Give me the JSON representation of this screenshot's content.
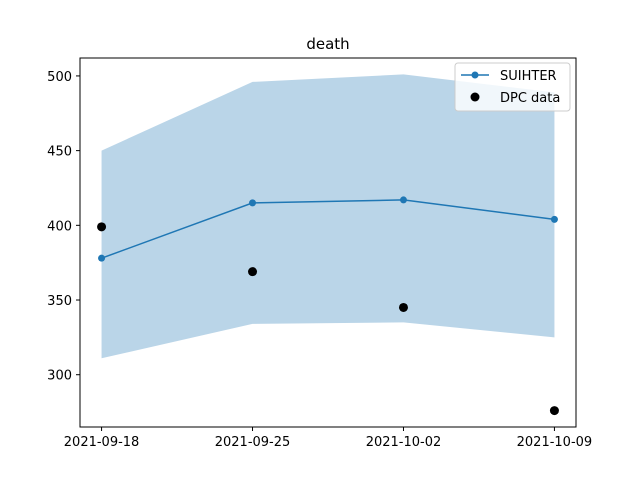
{
  "chart_data": {
    "type": "line",
    "title": "death",
    "xlabel": "",
    "ylabel": "",
    "x": [
      "2021-09-18",
      "2021-09-25",
      "2021-10-02",
      "2021-10-09"
    ],
    "xlim": [
      "2021-09-17",
      "2021-10-10"
    ],
    "ylim": [
      265,
      512
    ],
    "yticks": [
      300,
      350,
      400,
      450,
      500
    ],
    "grid": false,
    "legend_position": "top-right",
    "series": [
      {
        "name": "SUIHTER",
        "kind": "line",
        "color": "#1f77b4",
        "values": [
          378,
          415,
          417,
          404
        ],
        "band_lower": [
          311,
          334,
          335,
          325
        ],
        "band_upper": [
          450,
          496,
          501,
          489
        ],
        "band_color": "#bad5e8"
      },
      {
        "name": "DPC data",
        "kind": "scatter",
        "color": "#000000",
        "values": [
          399,
          369,
          345,
          276
        ]
      }
    ]
  }
}
